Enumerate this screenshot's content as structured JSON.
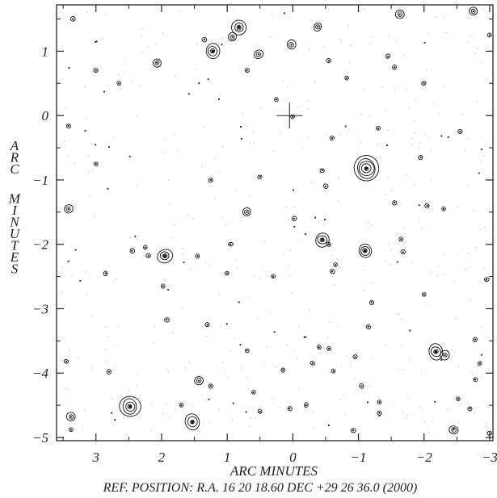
{
  "chart_data": {
    "type": "contour-map",
    "xlabel": "ARC MINUTES",
    "ylabel": "ARC MINUTES",
    "caption": "REF. POSITION:  R.A. 16 20 18.60    DEC +29 26 36.0  (2000)",
    "x_reversed": true,
    "xlim": [
      3.6,
      -3.05
    ],
    "ylim": [
      -5.05,
      1.72
    ],
    "x_ticks": [
      3,
      2,
      1,
      0,
      -1,
      -2,
      -3
    ],
    "x_tick_labels": [
      "3",
      "2",
      "1",
      "0",
      "−1",
      "−2",
      "−3"
    ],
    "y_ticks": [
      1,
      0,
      -1,
      -2,
      -3,
      -4,
      -5
    ],
    "y_tick_labels": [
      "1",
      "0",
      "−1",
      "−2",
      "−3",
      "−4",
      "−5"
    ],
    "reference_marker": [
      0.05,
      0.0
    ],
    "color": "#111111",
    "sources": [
      {
        "x": -1.12,
        "y": -0.82,
        "levels": 5
      },
      {
        "x": 2.48,
        "y": -4.52,
        "levels": 4
      },
      {
        "x": 1.53,
        "y": -4.76,
        "levels": 3
      },
      {
        "x": -2.18,
        "y": -3.67,
        "levels": 3
      },
      {
        "x": -2.32,
        "y": -3.72,
        "levels": 2
      },
      {
        "x": 0.82,
        "y": 1.37,
        "levels": 3
      },
      {
        "x": 1.22,
        "y": 1.0,
        "levels": 3
      },
      {
        "x": -0.45,
        "y": -1.93,
        "levels": 3
      },
      {
        "x": -1.1,
        "y": -2.1,
        "levels": 3
      },
      {
        "x": 1.95,
        "y": -2.18,
        "levels": 3
      },
      {
        "x": 0.92,
        "y": 1.22,
        "levels": 2
      },
      {
        "x": 0.52,
        "y": 0.95,
        "levels": 2
      },
      {
        "x": -0.38,
        "y": 1.38,
        "levels": 2
      },
      {
        "x": 0.02,
        "y": 1.1,
        "levels": 2
      },
      {
        "x": 2.07,
        "y": 0.82,
        "levels": 2
      },
      {
        "x": 3.0,
        "y": 0.7,
        "levels": 1
      },
      {
        "x": -1.63,
        "y": 1.57,
        "levels": 2
      },
      {
        "x": -2.75,
        "y": 1.62,
        "levels": 2
      },
      {
        "x": -3.0,
        "y": 1.25,
        "levels": 1
      },
      {
        "x": 3.42,
        "y": -0.16,
        "levels": 1
      },
      {
        "x": 0.0,
        "y": -0.02,
        "levels": 1
      },
      {
        "x": -0.45,
        "y": -0.85,
        "levels": 1
      },
      {
        "x": -0.5,
        "y": -1.1,
        "levels": 1
      },
      {
        "x": 1.25,
        "y": -1.0,
        "levels": 1
      },
      {
        "x": 0.7,
        "y": -1.5,
        "levels": 2
      },
      {
        "x": -0.02,
        "y": -1.6,
        "levels": 1
      },
      {
        "x": 3.42,
        "y": -1.45,
        "levels": 2
      },
      {
        "x": -0.65,
        "y": -2.32,
        "levels": 1
      },
      {
        "x": -0.6,
        "y": -2.42,
        "levels": 1
      },
      {
        "x": 2.2,
        "y": -2.18,
        "levels": 1
      },
      {
        "x": 1.45,
        "y": -2.18,
        "levels": 1
      },
      {
        "x": 1.98,
        "y": -2.65,
        "levels": 1
      },
      {
        "x": -1.65,
        "y": -1.92,
        "levels": 1
      },
      {
        "x": -1.68,
        "y": -2.12,
        "levels": 1
      },
      {
        "x": -2.05,
        "y": -1.4,
        "levels": 1
      },
      {
        "x": -2.3,
        "y": -1.45,
        "levels": 1
      },
      {
        "x": -2.95,
        "y": -2.55,
        "levels": 1
      },
      {
        "x": 1.92,
        "y": -3.17,
        "levels": 1
      },
      {
        "x": 1.3,
        "y": -3.25,
        "levels": 1
      },
      {
        "x": -1.15,
        "y": -3.28,
        "levels": 1
      },
      {
        "x": -0.4,
        "y": -3.6,
        "levels": 1
      },
      {
        "x": -0.55,
        "y": -3.62,
        "levels": 1
      },
      {
        "x": -0.3,
        "y": -3.85,
        "levels": 1
      },
      {
        "x": -0.62,
        "y": -3.97,
        "levels": 1
      },
      {
        "x": 0.15,
        "y": -3.95,
        "levels": 1
      },
      {
        "x": 2.8,
        "y": -3.98,
        "levels": 1
      },
      {
        "x": 1.43,
        "y": -4.12,
        "levels": 2
      },
      {
        "x": 1.25,
        "y": -4.2,
        "levels": 1
      },
      {
        "x": -2.78,
        "y": -4.1,
        "levels": 1
      },
      {
        "x": -2.52,
        "y": -4.4,
        "levels": 1
      },
      {
        "x": -1.32,
        "y": -4.45,
        "levels": 1
      },
      {
        "x": -2.45,
        "y": -4.88,
        "levels": 2
      },
      {
        "x": -3.0,
        "y": -4.93,
        "levels": 1
      },
      {
        "x": 3.38,
        "y": -4.68,
        "levels": 2
      },
      {
        "x": 3.38,
        "y": -4.88,
        "levels": 1
      },
      {
        "x": -0.92,
        "y": -4.89,
        "levels": 1
      },
      {
        "x": -1.32,
        "y": -4.62,
        "levels": 1
      },
      {
        "x": 0.6,
        "y": -4.3,
        "levels": 1
      },
      {
        "x": 0.5,
        "y": -4.6,
        "levels": 1
      },
      {
        "x": -0.2,
        "y": -4.5,
        "levels": 1
      },
      {
        "x": 3.45,
        "y": -3.82,
        "levels": 1
      },
      {
        "x": -2.85,
        "y": -3.85,
        "levels": 1
      },
      {
        "x": -2.78,
        "y": -3.48,
        "levels": 1
      },
      {
        "x": -2.0,
        "y": -2.78,
        "levels": 1
      },
      {
        "x": -1.55,
        "y": -1.35,
        "levels": 1
      },
      {
        "x": -0.6,
        "y": -0.35,
        "levels": 1
      },
      {
        "x": -1.3,
        "y": -0.2,
        "levels": 1
      },
      {
        "x": -0.82,
        "y": 0.58,
        "levels": 1
      },
      {
        "x": -1.55,
        "y": 0.75,
        "levels": 1
      },
      {
        "x": -1.45,
        "y": 0.92,
        "levels": 1
      },
      {
        "x": 1.35,
        "y": 1.18,
        "levels": 1
      },
      {
        "x": 3.35,
        "y": 1.5,
        "levels": 1
      },
      {
        "x": 2.65,
        "y": 0.5,
        "levels": 1
      },
      {
        "x": 2.25,
        "y": -2.05,
        "levels": 1
      },
      {
        "x": 0.3,
        "y": -2.5,
        "levels": 1
      },
      {
        "x": 3.0,
        "y": -0.75,
        "levels": 1
      },
      {
        "x": 0.5,
        "y": -0.95,
        "levels": 1
      },
      {
        "x": -0.55,
        "y": 0.85,
        "levels": 1
      },
      {
        "x": 0.7,
        "y": 0.7,
        "levels": 1
      },
      {
        "x": -2.0,
        "y": 0.5,
        "levels": 1
      },
      {
        "x": -2.55,
        "y": -0.25,
        "levels": 1
      },
      {
        "x": -1.95,
        "y": -0.65,
        "levels": 1
      },
      {
        "x": 0.95,
        "y": -2.0,
        "levels": 1
      },
      {
        "x": -0.55,
        "y": -2.0,
        "levels": 1
      },
      {
        "x": 2.45,
        "y": -2.1,
        "levels": 1
      },
      {
        "x": 1.0,
        "y": -2.45,
        "levels": 1
      },
      {
        "x": -1.2,
        "y": -2.9,
        "levels": 1
      },
      {
        "x": 0.7,
        "y": -3.65,
        "levels": 1
      },
      {
        "x": -0.95,
        "y": -3.75,
        "levels": 1
      },
      {
        "x": -1.05,
        "y": -4.2,
        "levels": 1
      },
      {
        "x": 1.7,
        "y": -4.5,
        "levels": 1
      },
      {
        "x": 0.05,
        "y": -4.55,
        "levels": 1
      },
      {
        "x": -2.7,
        "y": -4.55,
        "levels": 1
      },
      {
        "x": 2.85,
        "y": -2.45,
        "levels": 1
      },
      {
        "x": 0.25,
        "y": 0.25,
        "levels": 1
      }
    ]
  }
}
